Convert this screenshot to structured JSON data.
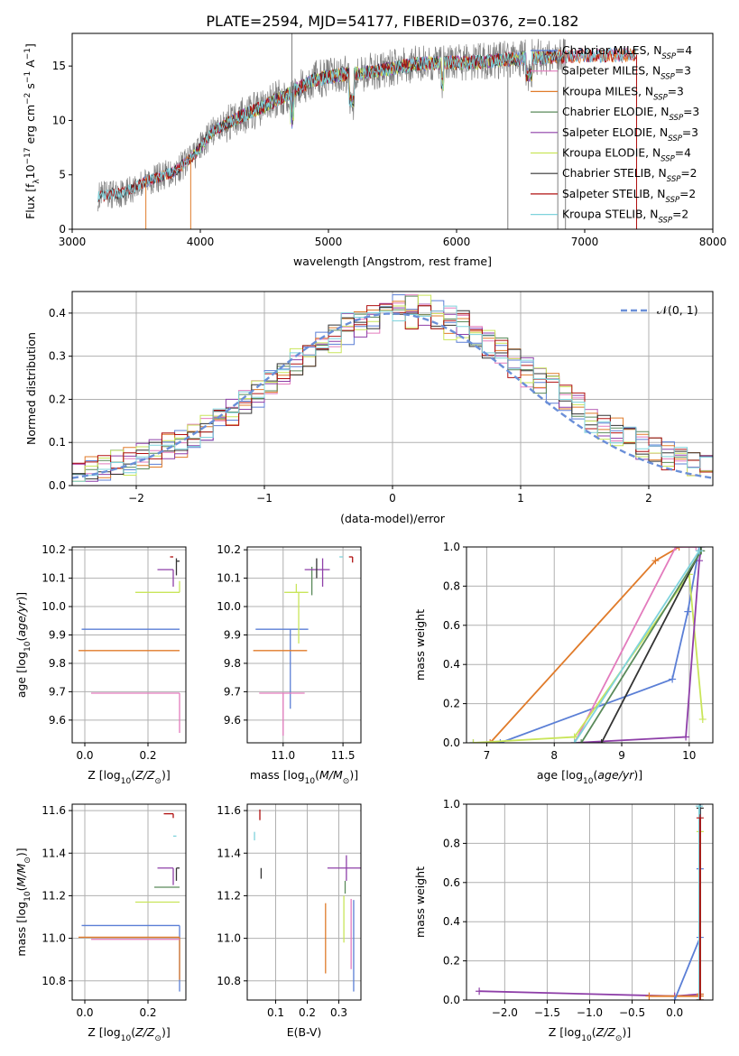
{
  "figure": {
    "title": "PLATE=2594, MJD=54177, FIBERID=0376, z=0.182"
  },
  "colors": {
    "Chabrier MILES": "#5b7fd6",
    "Salpeter MILES": "#e37bbd",
    "Kroupa MILES": "#e07b2a",
    "Chabrier ELODIE": "#5a8a5a",
    "Salpeter ELODIE": "#8e3fa8",
    "Kroupa ELODIE": "#c9e55a",
    "Chabrier STELIB": "#333333",
    "Salpeter STELIB": "#b01010",
    "Kroupa STELIB": "#7fd3dc",
    "data": "#808080",
    "normal": "#6a8fd8",
    "grid": "#b0b0b0"
  },
  "chart_data": [
    {
      "id": "spectrum",
      "type": "line",
      "xlabel": "wavelength [Angstrom, rest frame]",
      "ylabel": "Flux [f_λ10^-17 erg cm^-2 s^-1 A^-1]",
      "xlim": [
        3000,
        8000
      ],
      "ylim": [
        0,
        18
      ],
      "xticks": [
        "3000",
        "4000",
        "5000",
        "6000",
        "7000",
        "8000"
      ],
      "yticks": [
        "0",
        "5",
        "10",
        "15"
      ],
      "grid": false,
      "legend_position": "upper right",
      "legend": [
        {
          "model": "Chabrier MILES",
          "label": "Chabrier MILES, N",
          "sub": "SSP",
          "eq": "=4"
        },
        {
          "model": "Salpeter MILES",
          "label": "Salpeter MILES, N",
          "sub": "SSP",
          "eq": "=3"
        },
        {
          "model": "Kroupa MILES",
          "label": "Kroupa MILES, N",
          "sub": "SSP",
          "eq": "=3"
        },
        {
          "model": "Chabrier ELODIE",
          "label": "Chabrier ELODIE, N",
          "sub": "SSP",
          "eq": "=3"
        },
        {
          "model": "Salpeter ELODIE",
          "label": "Salpeter ELODIE, N",
          "sub": "SSP",
          "eq": "=3"
        },
        {
          "model": "Kroupa ELODIE",
          "label": "Kroupa ELODIE, N",
          "sub": "SSP",
          "eq": "=4"
        },
        {
          "model": "Chabrier STELIB",
          "label": "Chabrier STELIB, N",
          "sub": "SSP",
          "eq": "=2"
        },
        {
          "model": "Salpeter STELIB",
          "label": "Salpeter STELIB, N",
          "sub": "SSP",
          "eq": "=2"
        },
        {
          "model": "Kroupa STELIB",
          "label": "Kroupa STELIB, N",
          "sub": "SSP",
          "eq": "=2"
        }
      ],
      "continuum": {
        "x": [
          3200,
          3400,
          3600,
          3800,
          3950,
          4100,
          4300,
          4500,
          4700,
          4900,
          5100,
          5300,
          5500,
          5700,
          5900,
          6100,
          6300,
          6500,
          6700,
          6900,
          7100,
          7300,
          7500,
          7700
        ],
        "y": [
          3.0,
          3.4,
          4.5,
          5.3,
          6.8,
          9.0,
          10.3,
          11.3,
          12.5,
          13.8,
          14.2,
          14.4,
          14.8,
          15.2,
          15.3,
          15.3,
          15.5,
          15.7,
          15.8,
          15.9,
          16.0,
          16.0,
          16.1,
          16.1
        ]
      },
      "data_range": [
        3200,
        6850
      ],
      "model_ranges": {
        "Chabrier MILES": [
          3540,
          7400
        ],
        "Salpeter MILES": [
          3540,
          7400
        ],
        "Kroupa MILES": [
          3540,
          7400
        ],
        "Chabrier ELODIE": [
          3900,
          6800
        ],
        "Salpeter ELODIE": [
          3900,
          6800
        ],
        "Kroupa ELODIE": [
          3900,
          6800
        ],
        "Chabrier STELIB": [
          3200,
          6850
        ],
        "Salpeter STELIB": [
          3200,
          7400
        ],
        "Kroupa STELIB": [
          3200,
          7400
        ]
      },
      "spikes": [
        {
          "x": 4715,
          "y": 18
        },
        {
          "x": 3575,
          "y": 0
        },
        {
          "x": 3925,
          "y": 0
        },
        {
          "x": 6400,
          "y": 0
        },
        {
          "x": 6790,
          "y": 0
        },
        {
          "x": 6850,
          "y": 0
        },
        {
          "x": 7405,
          "y": 0
        }
      ]
    },
    {
      "id": "residuals",
      "type": "line",
      "xlabel": "(data-model)/error",
      "ylabel": "Normed distribution",
      "xlim": [
        -2.5,
        2.5
      ],
      "ylim": [
        0,
        0.45
      ],
      "xticks": [
        "−2",
        "−1",
        "0",
        "1",
        "2"
      ],
      "yticks": [
        "0.0",
        "0.1",
        "0.2",
        "0.3",
        "0.4"
      ],
      "grid": true,
      "legend_position": "upper right",
      "legend": [
        {
          "label": "𝒩(0, 1)"
        }
      ],
      "bin_width": 0.1,
      "normal_mu": 0,
      "normal_sigma": 1
    },
    {
      "id": "age_vs_Z",
      "type": "scatter",
      "xlabel": "Z [log10(Z/Z⊙)]",
      "ylabel": "age [log10(age/yr)]",
      "xlim": [
        -0.04,
        0.32
      ],
      "ylim": [
        9.52,
        10.21
      ],
      "xticks": [
        "0.0",
        "0.2"
      ],
      "yticks": [
        "9.6",
        "9.7",
        "9.8",
        "9.9",
        "10.0",
        "10.1",
        "10.2"
      ],
      "grid": true,
      "errorbars": [
        {
          "model": "Chabrier MILES",
          "x": 0.3,
          "y": 9.92,
          "xerr": [
            0.31,
            0.0
          ],
          "yerr": [
            0.0,
            0.0
          ]
        },
        {
          "model": "Kroupa MILES",
          "x": 0.3,
          "y": 9.845,
          "xerr": [
            0.32,
            0.0
          ],
          "yerr": [
            0.0,
            0.0
          ]
        },
        {
          "model": "Salpeter MILES",
          "x": 0.3,
          "y": 9.695,
          "xerr": [
            0.28,
            0.0
          ],
          "yerr": [
            0.14,
            0.0
          ]
        },
        {
          "model": "Kroupa ELODIE",
          "x": 0.3,
          "y": 10.05,
          "xerr": [
            0.14,
            0.0
          ],
          "yerr": [
            0.0,
            0.04
          ]
        },
        {
          "model": "Salpeter ELODIE",
          "x": 0.28,
          "y": 10.13,
          "xerr": [
            0.05,
            0.0
          ],
          "yerr": [
            0.06,
            0.0
          ]
        },
        {
          "model": "Chabrier STELIB",
          "x": 0.29,
          "y": 10.16,
          "xerr": [
            0.0,
            0.01
          ],
          "yerr": [
            0.05,
            0.01
          ]
        },
        {
          "model": "Salpeter STELIB",
          "x": 0.28,
          "y": 10.175,
          "xerr": [
            0.01,
            0.0
          ],
          "yerr": [
            0.0,
            0.0
          ]
        }
      ]
    },
    {
      "id": "age_vs_mass",
      "type": "scatter",
      "xlabel": "mass [log10(M/M⊙)]",
      "ylabel": "",
      "xlim": [
        10.7,
        11.65
      ],
      "ylim": [
        9.52,
        10.21
      ],
      "xticks": [
        "11.0",
        "11.5"
      ],
      "yticks": [
        "9.6",
        "9.7",
        "9.8",
        "9.9",
        "10.0",
        "10.1",
        "10.2"
      ],
      "grid": true,
      "errorbars": [
        {
          "model": "Chabrier MILES",
          "x": 11.06,
          "y": 9.92,
          "xerr": [
            0.29,
            0.15
          ],
          "yerr": [
            0.28,
            0.0
          ]
        },
        {
          "model": "Kroupa MILES",
          "x": 11.0,
          "y": 9.845,
          "xerr": [
            0.25,
            0.2
          ],
          "yerr": [
            0.0,
            0.0
          ]
        },
        {
          "model": "Salpeter MILES",
          "x": 11.0,
          "y": 9.695,
          "xerr": [
            0.2,
            0.18
          ],
          "yerr": [
            0.15,
            0.0
          ]
        },
        {
          "model": "Kroupa ELODIE",
          "x": 11.11,
          "y": 10.05,
          "xerr": [
            0.1,
            0.1
          ],
          "yerr": [
            0.0,
            0.03
          ]
        },
        {
          "model": "Kroupa ELODIE",
          "x": 11.13,
          "y": 9.99,
          "xerr": [
            0.0,
            0.0
          ],
          "yerr": [
            0.12,
            0.06
          ]
        },
        {
          "model": "Chabrier ELODIE",
          "x": 11.24,
          "y": 10.08,
          "xerr": [
            0.0,
            0.0
          ],
          "yerr": [
            0.04,
            0.06
          ]
        },
        {
          "model": "Salpeter ELODIE",
          "x": 11.33,
          "y": 10.13,
          "xerr": [
            0.15,
            0.06
          ],
          "yerr": [
            0.06,
            0.04
          ]
        },
        {
          "model": "Chabrier STELIB",
          "x": 11.28,
          "y": 10.14,
          "xerr": [
            0.0,
            0.0
          ],
          "yerr": [
            0.04,
            0.03
          ]
        },
        {
          "model": "Kroupa STELIB",
          "x": 11.5,
          "y": 10.175,
          "xerr": [
            0.03,
            0.0
          ],
          "yerr": [
            0.0,
            0.0
          ]
        },
        {
          "model": "Salpeter STELIB",
          "x": 11.58,
          "y": 10.175,
          "xerr": [
            0.03,
            0.0
          ],
          "yerr": [
            0.02,
            0.0
          ]
        }
      ]
    },
    {
      "id": "weight_vs_age",
      "type": "line",
      "xlabel": "age [log10(age/yr)]",
      "ylabel": "mass weight",
      "xlim": [
        6.7,
        10.35
      ],
      "ylim": [
        0,
        1.0
      ],
      "xticks": [
        "7",
        "8",
        "9",
        "10"
      ],
      "yticks": [
        "0.0",
        "0.2",
        "0.4",
        "0.6",
        "0.8",
        "1.0"
      ],
      "grid": true,
      "series": [
        {
          "model": "Chabrier MILES",
          "x": [
            6.8,
            7.2,
            9.75,
            9.98,
            10.15
          ],
          "y": [
            0.0,
            0.0,
            0.325,
            0.67,
            1.0
          ]
        },
        {
          "model": "Kroupa MILES",
          "x": [
            7.05,
            9.5,
            9.85
          ],
          "y": [
            0.0,
            0.93,
            1.0
          ]
        },
        {
          "model": "Salpeter MILES",
          "x": [
            8.3,
            9.8,
            10.1
          ],
          "y": [
            0.0,
            1.0,
            1.0
          ]
        },
        {
          "model": "Kroupa ELODIE",
          "x": [
            6.8,
            8.3,
            10.0,
            10.2
          ],
          "y": [
            0.0,
            0.03,
            0.86,
            0.12
          ]
        },
        {
          "model": "Salpeter ELODIE",
          "x": [
            8.3,
            9.95,
            10.15,
            10.18
          ],
          "y": [
            0.0,
            0.03,
            0.93,
            1.0
          ]
        },
        {
          "model": "Chabrier STELIB",
          "x": [
            8.7,
            10.17
          ],
          "y": [
            0.0,
            0.98
          ]
        },
        {
          "model": "Chabrier ELODIE",
          "x": [
            8.4,
            10.18
          ],
          "y": [
            0.0,
            0.98
          ]
        },
        {
          "model": "Kroupa STELIB",
          "x": [
            8.3,
            10.15
          ],
          "y": [
            0.0,
            0.98
          ]
        }
      ]
    },
    {
      "id": "mass_vs_Z",
      "type": "scatter",
      "xlabel": "Z [log10(Z/Z⊙)]",
      "ylabel": "mass [log10(M/M⊙)]",
      "xlim": [
        -0.04,
        0.32
      ],
      "ylim": [
        10.71,
        11.63
      ],
      "xticks": [
        "0.0",
        "0.2"
      ],
      "yticks": [
        "10.8",
        "11.0",
        "11.2",
        "11.4",
        "11.6"
      ],
      "grid": true,
      "errorbars": [
        {
          "model": "Chabrier MILES",
          "x": 0.3,
          "y": 11.06,
          "xerr": [
            0.31,
            0.0
          ],
          "yerr": [
            0.31,
            0.0
          ]
        },
        {
          "model": "Kroupa MILES",
          "x": 0.3,
          "y": 11.005,
          "xerr": [
            0.32,
            0.0
          ],
          "yerr": [
            0.2,
            0.0
          ]
        },
        {
          "model": "Salpeter MILES",
          "x": 0.3,
          "y": 10.995,
          "xerr": [
            0.28,
            0.0
          ],
          "yerr": [
            0.0,
            0.0
          ]
        },
        {
          "model": "Kroupa ELODIE",
          "x": 0.3,
          "y": 11.17,
          "xerr": [
            0.14,
            0.0
          ],
          "yerr": [
            0.0,
            0.0
          ]
        },
        {
          "model": "Chabrier ELODIE",
          "x": 0.3,
          "y": 11.24,
          "xerr": [
            0.08,
            0.0
          ],
          "yerr": [
            0.0,
            0.0
          ]
        },
        {
          "model": "Salpeter ELODIE",
          "x": 0.28,
          "y": 11.33,
          "xerr": [
            0.05,
            0.0
          ],
          "yerr": [
            0.08,
            0.0
          ]
        },
        {
          "model": "Chabrier STELIB",
          "x": 0.29,
          "y": 11.33,
          "xerr": [
            0.0,
            0.01
          ],
          "yerr": [
            0.06,
            0.0
          ]
        },
        {
          "model": "Kroupa STELIB",
          "x": 0.29,
          "y": 11.48,
          "xerr": [
            0.01,
            0.0
          ],
          "yerr": [
            0.0,
            0.0
          ]
        },
        {
          "model": "Salpeter STELIB",
          "x": 0.28,
          "y": 11.585,
          "xerr": [
            0.03,
            0.0
          ],
          "yerr": [
            0.02,
            0.0
          ]
        }
      ]
    },
    {
      "id": "mass_vs_EBV",
      "type": "scatter",
      "xlabel": "E(B-V)",
      "ylabel": "",
      "xlim": [
        0.01,
        0.37
      ],
      "ylim": [
        10.71,
        11.63
      ],
      "xticks": [
        "0.1",
        "0.2",
        "0.3"
      ],
      "yticks": [
        "10.8",
        "11.0",
        "11.2",
        "11.4",
        "11.6"
      ],
      "grid": true,
      "errorbars": [
        {
          "model": "Chabrier MILES",
          "x": 0.347,
          "y": 11.06,
          "xerr": [
            0.0,
            0.0
          ],
          "yerr": [
            0.31,
            0.12
          ]
        },
        {
          "model": "Kroupa MILES",
          "x": 0.258,
          "y": 11.005,
          "xerr": [
            0.0,
            0.0
          ],
          "yerr": [
            0.17,
            0.16
          ]
        },
        {
          "model": "Salpeter MILES",
          "x": 0.339,
          "y": 10.995,
          "xerr": [
            0.0,
            0.0
          ],
          "yerr": [
            0.14,
            0.19
          ]
        },
        {
          "model": "Kroupa ELODIE",
          "x": 0.316,
          "y": 11.17,
          "xerr": [
            0.0,
            0.0
          ],
          "yerr": [
            0.19,
            0.03
          ]
        },
        {
          "model": "Salpeter ELODIE",
          "x": 0.324,
          "y": 11.33,
          "xerr": [
            0.06,
            0.06
          ],
          "yerr": [
            0.06,
            0.06
          ]
        },
        {
          "model": "Chabrier ELODIE",
          "x": 0.32,
          "y": 11.24,
          "xerr": [
            0.0,
            0.0
          ],
          "yerr": [
            0.03,
            0.03
          ]
        },
        {
          "model": "Chabrier STELIB",
          "x": 0.054,
          "y": 11.3,
          "xerr": [
            0.0,
            0.0
          ],
          "yerr": [
            0.02,
            0.03
          ]
        },
        {
          "model": "Kroupa STELIB",
          "x": 0.033,
          "y": 11.48,
          "xerr": [
            0.0,
            0.0
          ],
          "yerr": [
            0.02,
            0.02
          ]
        },
        {
          "model": "Salpeter STELIB",
          "x": 0.05,
          "y": 11.585,
          "xerr": [
            0.0,
            0.0
          ],
          "yerr": [
            0.03,
            0.02
          ]
        }
      ]
    },
    {
      "id": "weight_vs_Z",
      "type": "line",
      "xlabel": "Z [log10(Z/Z⊙)]",
      "ylabel": "mass weight",
      "xlim": [
        -2.45,
        0.45
      ],
      "ylim": [
        0,
        1.0
      ],
      "xticks": [
        "−2.0",
        "−1.5",
        "−1.0",
        "−0.5",
        "0.0"
      ],
      "yticks": [
        "0.0",
        "0.2",
        "0.4",
        "0.6",
        "0.8",
        "1.0"
      ],
      "grid": true,
      "series": [
        {
          "model": "Salpeter ELODIE",
          "x": [
            -2.3,
            0.0,
            0.3
          ],
          "y": [
            0.045,
            0.02,
            0.03
          ]
        },
        {
          "model": "Kroupa MILES",
          "x": [
            -0.3,
            0.3,
            0.3
          ],
          "y": [
            0.02,
            0.02,
            0.03
          ]
        },
        {
          "model": "Chabrier MILES",
          "x": [
            0.0,
            0.3,
            0.3,
            0.3
          ],
          "y": [
            0.0,
            0.32,
            0.67,
            1.0
          ]
        },
        {
          "model": "Kroupa ELODIE",
          "x": [
            0.3,
            0.3
          ],
          "y": [
            0.0,
            0.86
          ]
        },
        {
          "model": "Chabrier STELIB",
          "x": [
            0.3,
            0.3
          ],
          "y": [
            0.0,
            0.98
          ]
        },
        {
          "model": "Kroupa STELIB",
          "x": [
            0.29,
            0.29
          ],
          "y": [
            0.0,
            0.99
          ]
        },
        {
          "model": "Salpeter STELIB",
          "x": [
            0.3,
            0.3
          ],
          "y": [
            0.0,
            0.93
          ]
        }
      ]
    }
  ]
}
